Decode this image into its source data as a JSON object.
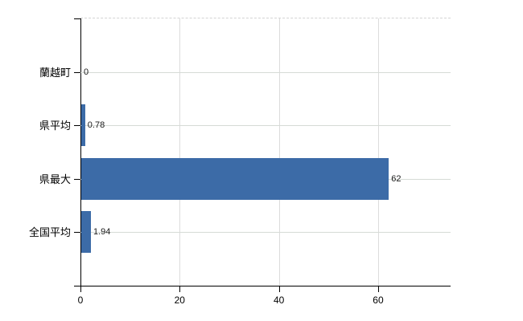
{
  "chart_data": {
    "type": "bar",
    "orientation": "horizontal",
    "title": "",
    "xlabel": "",
    "ylabel": "",
    "categories": [
      "蘭越町",
      "県平均",
      "県最大",
      "全国平均"
    ],
    "values": [
      0,
      0.78,
      62,
      1.94
    ],
    "value_labels": [
      "0",
      "0.78",
      "62",
      "1.94"
    ],
    "x_ticks": [
      0,
      20,
      40,
      60
    ],
    "x_tick_labels": [
      "0",
      "20",
      "40",
      "60"
    ],
    "xlim": [
      0,
      74.6
    ],
    "grid": "on",
    "legend": "none",
    "bar_color": "#3c6ba7"
  },
  "colors": {
    "bar": "#3c6ba7",
    "axis": "#000000",
    "h_gridline": "#d6dbd6",
    "v_gridline": "#dcdcdc",
    "background": "#ffffff",
    "text": "#000000"
  }
}
